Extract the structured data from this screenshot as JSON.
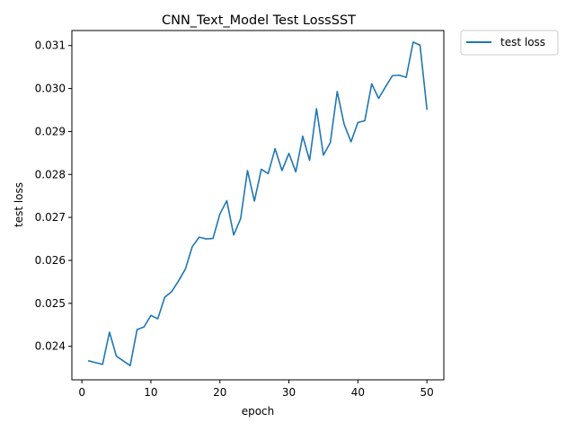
{
  "chart_data": {
    "type": "line",
    "title": "CNN_Text_Model Test LossSST",
    "xlabel": "epoch",
    "ylabel": "test loss",
    "xlim": [
      -1.45,
      52.45
    ],
    "ylim": [
      0.02322,
      0.03135
    ],
    "x_ticks": [
      0,
      10,
      20,
      30,
      40,
      50
    ],
    "y_ticks": [
      0.024,
      0.025,
      0.026,
      0.027,
      0.028,
      0.029,
      0.03,
      0.031
    ],
    "y_tick_labels": [
      "0.024",
      "0.025",
      "0.026",
      "0.027",
      "0.028",
      "0.029",
      "0.030",
      "0.031"
    ],
    "grid": false,
    "legend_position": "outside-top-right",
    "series": [
      {
        "name": "test loss",
        "color": "#1f77b4",
        "x": [
          1,
          2,
          3,
          4,
          5,
          6,
          7,
          8,
          9,
          10,
          11,
          12,
          13,
          14,
          15,
          16,
          17,
          18,
          19,
          20,
          21,
          22,
          23,
          24,
          25,
          26,
          27,
          28,
          29,
          30,
          31,
          32,
          33,
          34,
          35,
          36,
          37,
          38,
          39,
          40,
          41,
          42,
          43,
          44,
          45,
          46,
          47,
          48,
          49,
          50
        ],
        "y": [
          0.02366,
          0.02362,
          0.02358,
          0.02433,
          0.02377,
          0.02366,
          0.02355,
          0.02439,
          0.02445,
          0.02472,
          0.02464,
          0.02514,
          0.02527,
          0.02552,
          0.0258,
          0.02632,
          0.02654,
          0.0265,
          0.02651,
          0.02708,
          0.02739,
          0.02659,
          0.02697,
          0.02809,
          0.02738,
          0.02812,
          0.02802,
          0.0286,
          0.02809,
          0.02849,
          0.02806,
          0.02889,
          0.02833,
          0.02953,
          0.02845,
          0.02874,
          0.02993,
          0.02917,
          0.02876,
          0.02921,
          0.02925,
          0.03011,
          0.02977,
          0.03004,
          0.0303,
          0.03031,
          0.03026,
          0.03108,
          0.03101,
          0.02952
        ]
      }
    ]
  }
}
